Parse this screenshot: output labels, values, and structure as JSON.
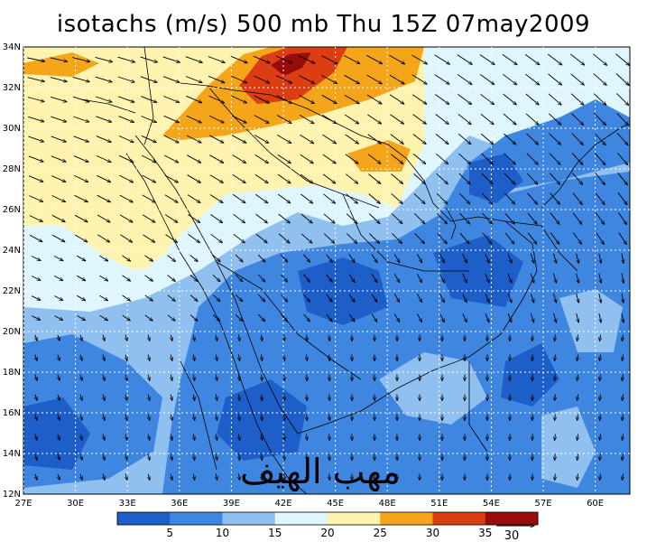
{
  "title": "isotachs (m/s) 500 mb Thu 15Z 07may2009",
  "lon_labels": [
    "27E",
    "30E",
    "33E",
    "36E",
    "39E",
    "42E",
    "45E",
    "48E",
    "51E",
    "54E",
    "57E",
    "60E"
  ],
  "lat_labels": [
    "12N",
    "14N",
    "16N",
    "18N",
    "20N",
    "22N",
    "24N",
    "26N",
    "28N",
    "30N",
    "32N",
    "34N"
  ],
  "colorbar": {
    "labels": [
      "5",
      "10",
      "15",
      "20",
      "25",
      "30",
      "35"
    ],
    "colors": [
      "#1d5ec9",
      "#3e86e0",
      "#8fc0f0",
      "#e0f6ff",
      "#fff3b0",
      "#f4a51a",
      "#dc3d12",
      "#9a0b0b"
    ],
    "reference_vector_label": "30"
  },
  "watermark_text": "مهب الهيف",
  "colors": {
    "background": "#ffffff",
    "grid": "#ffffff",
    "vector": "#000000"
  },
  "map": {
    "lon_range": [
      27,
      62
    ],
    "lat_range": [
      12,
      34
    ]
  }
}
